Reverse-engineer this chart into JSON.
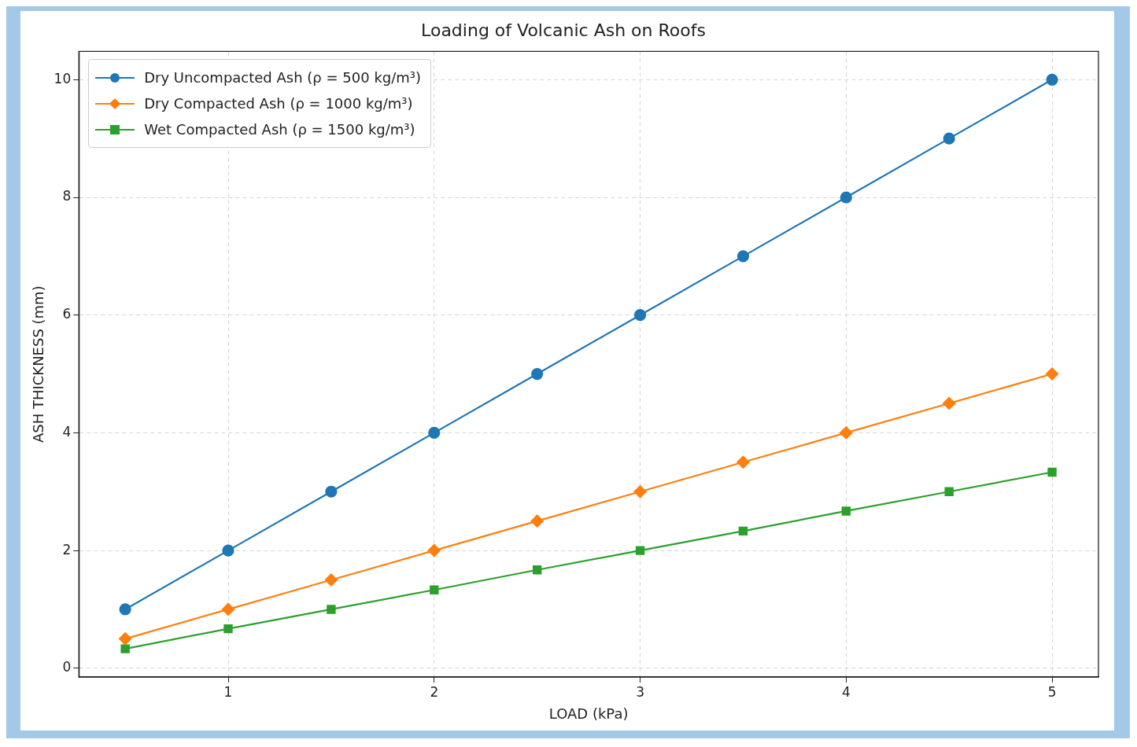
{
  "chart_data": {
    "type": "line",
    "title": "Loading of Volcanic Ash on Roofs",
    "xlabel": "LOAD (kPa)",
    "ylabel": "ASH THICKNESS (mm)",
    "x": [
      0.5,
      1,
      1.5,
      2,
      2.5,
      3,
      3.5,
      4,
      4.5,
      5
    ],
    "series": [
      {
        "name": "Dry Uncompacted Ash (ρ = 500 kg/m³)",
        "color": "#1f77b4",
        "marker": "circle",
        "values": [
          1,
          2,
          3,
          4,
          5,
          6,
          7,
          8,
          9,
          10
        ]
      },
      {
        "name": "Dry Compacted Ash (ρ = 1000 kg/m³)",
        "color": "#ff7f0e",
        "marker": "diamond",
        "values": [
          0.5,
          1,
          1.5,
          2,
          2.5,
          3,
          3.5,
          4,
          4.5,
          5
        ]
      },
      {
        "name": "Wet Compacted Ash (ρ = 1500 kg/m³)",
        "color": "#2ca02c",
        "marker": "square",
        "values": [
          0.33,
          0.67,
          1,
          1.33,
          1.67,
          2,
          2.33,
          2.67,
          3,
          3.33
        ]
      }
    ],
    "xlim": [
      0.275,
      5.225
    ],
    "xticks": [
      1,
      2,
      3,
      4,
      5
    ],
    "ylim": [
      -0.15,
      10.48
    ],
    "yticks": [
      0,
      2,
      4,
      6,
      8,
      10
    ],
    "grid": true,
    "legend": "top left",
    "line_style": "solid"
  }
}
